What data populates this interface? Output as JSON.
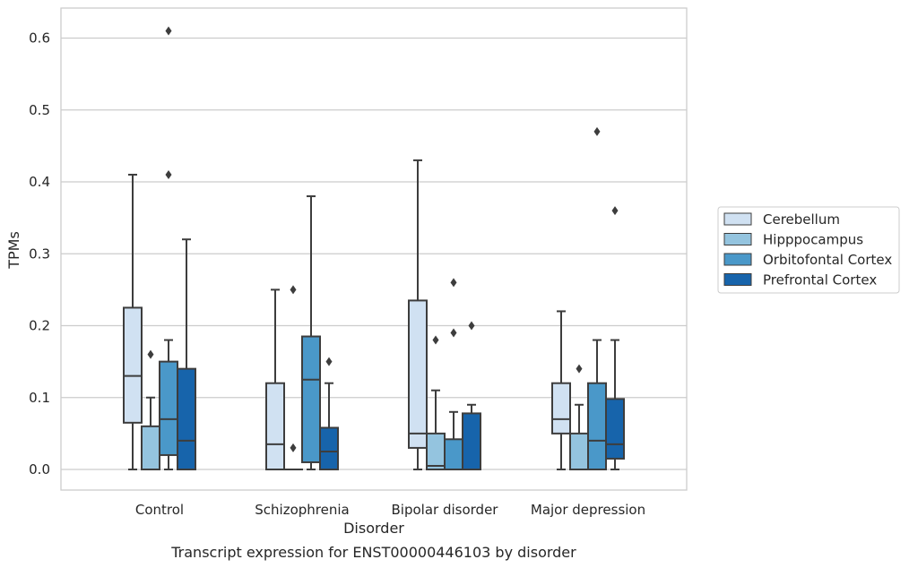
{
  "chart_data": {
    "type": "box",
    "caption": "Transcript expression for ENST00000446103 by disorder",
    "xlabel": "Disorder",
    "ylabel": "TPMs",
    "ylim": [
      -0.03,
      0.64
    ],
    "yticks": [
      0.0,
      0.1,
      0.2,
      0.3,
      0.4,
      0.5,
      0.6
    ],
    "ytick_labels": [
      "0.0",
      "0.1",
      "0.2",
      "0.3",
      "0.4",
      "0.5",
      "0.6"
    ],
    "grid": true,
    "legend_position": "right",
    "categories": [
      "Control",
      "Schizophrenia",
      "Bipolar disorder",
      "Major depression"
    ],
    "series": [
      {
        "name": "Cerebellum",
        "color": "#d0e1f2",
        "boxes": [
          {
            "whislo": 0.0,
            "q1": 0.065,
            "med": 0.13,
            "q3": 0.225,
            "whishi": 0.41,
            "fliers": []
          },
          {
            "whislo": 0.0,
            "q1": 0.0,
            "med": 0.035,
            "q3": 0.12,
            "whishi": 0.25,
            "fliers": []
          },
          {
            "whislo": 0.0,
            "q1": 0.03,
            "med": 0.05,
            "q3": 0.235,
            "whishi": 0.43,
            "fliers": []
          },
          {
            "whislo": 0.0,
            "q1": 0.05,
            "med": 0.07,
            "q3": 0.12,
            "whishi": 0.22,
            "fliers": []
          }
        ]
      },
      {
        "name": "Hipppocampus",
        "color": "#94c4df",
        "boxes": [
          {
            "whislo": 0.0,
            "q1": 0.0,
            "med": 0.0,
            "q3": 0.06,
            "whishi": 0.1,
            "fliers": [
              0.16
            ]
          },
          {
            "whislo": 0.0,
            "q1": 0.0,
            "med": 0.0,
            "q3": 0.0,
            "whishi": 0.0,
            "fliers": [
              0.03,
              0.25
            ]
          },
          {
            "whislo": 0.0,
            "q1": 0.0,
            "med": 0.005,
            "q3": 0.05,
            "whishi": 0.11,
            "fliers": [
              0.18
            ]
          },
          {
            "whislo": 0.0,
            "q1": 0.0,
            "med": 0.0,
            "q3": 0.05,
            "whishi": 0.09,
            "fliers": [
              0.14
            ]
          }
        ]
      },
      {
        "name": "Orbitofontal Cortex",
        "color": "#4a98c9",
        "boxes": [
          {
            "whislo": 0.0,
            "q1": 0.02,
            "med": 0.07,
            "q3": 0.15,
            "whishi": 0.18,
            "fliers": [
              0.41,
              0.61
            ]
          },
          {
            "whislo": 0.0,
            "q1": 0.01,
            "med": 0.125,
            "q3": 0.185,
            "whishi": 0.38,
            "fliers": []
          },
          {
            "whislo": 0.0,
            "q1": 0.0,
            "med": 0.0,
            "q3": 0.042,
            "whishi": 0.08,
            "fliers": [
              0.19,
              0.26
            ]
          },
          {
            "whislo": 0.0,
            "q1": 0.0,
            "med": 0.04,
            "q3": 0.12,
            "whishi": 0.18,
            "fliers": [
              0.47
            ]
          }
        ]
      },
      {
        "name": "Prefrontal Cortex",
        "color": "#1764ab",
        "boxes": [
          {
            "whislo": 0.0,
            "q1": 0.0,
            "med": 0.04,
            "q3": 0.14,
            "whishi": 0.32,
            "fliers": []
          },
          {
            "whislo": 0.0,
            "q1": 0.0,
            "med": 0.025,
            "q3": 0.058,
            "whishi": 0.12,
            "fliers": [
              0.15
            ]
          },
          {
            "whislo": 0.0,
            "q1": 0.0,
            "med": 0.0,
            "q3": 0.078,
            "whishi": 0.09,
            "fliers": [
              0.2
            ]
          },
          {
            "whislo": 0.0,
            "q1": 0.015,
            "med": 0.035,
            "q3": 0.098,
            "whishi": 0.18,
            "fliers": [
              0.36
            ]
          }
        ]
      }
    ]
  }
}
